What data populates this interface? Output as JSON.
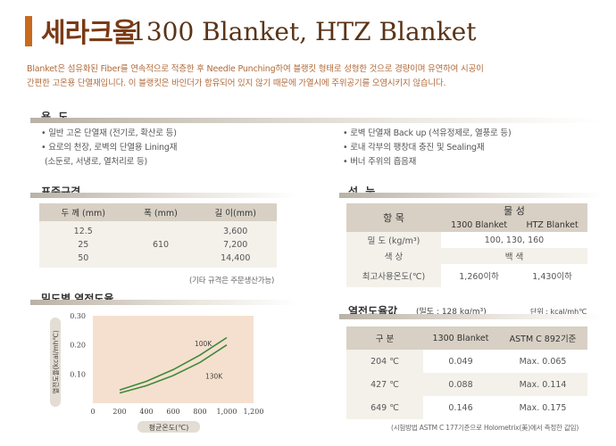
{
  "title": {
    "ko": "세라크울",
    "en": "1300 Blanket, HTZ Blanket"
  },
  "intro": [
    "Blanket은 섬유화된 Fiber를 연속적으로 적층한 후 Needle Punching하여 블랭킷 형태로 성형한 것으로 경량이며 유연하여 시공이",
    "간편한 고온용 단열재입니다. 이 블랭킷은 바인더가 함유되어 있지 않기 때문에 가열시에 주위공기를 오염시키지 않습니다."
  ],
  "usage": {
    "heading": "용 도",
    "left": [
      "• 일반 고온 단열재 (전기로, 확산로 등)",
      "• 요로의 천장, 로벽의 단열용 Lining재",
      "(소둔로, 서냉로, 열처리로 등)"
    ],
    "right": [
      "• 로벽 단열재 Back up (석유정제로, 열풍로 등)",
      "• 로내 각부의 팽창대 충진 및 Sealing재",
      "• 버너 주위의 흡음재"
    ]
  },
  "spec": {
    "heading": "표준규격",
    "headers": [
      "두 께 (mm)",
      "폭 (mm)",
      "길 이(mm)"
    ],
    "thickness": [
      "12.5",
      "25",
      "50"
    ],
    "width": "610",
    "length": [
      "3,600",
      "7,200",
      "14,400"
    ],
    "note": "(기타 규격은 주문생산가능)"
  },
  "perf": {
    "heading": "성 능",
    "header_item": "항 목",
    "header_group": "물 성",
    "cols": [
      "1300 Blanket",
      "HTZ Blanket"
    ],
    "rows": [
      {
        "label": "밀 도 (kg/m³)",
        "merged": "100, 130, 160"
      },
      {
        "label": "색 상",
        "merged": "백 색"
      },
      {
        "label": "최고사용온도(℃)",
        "a": "1,260이하",
        "b": "1,430이하"
      }
    ]
  },
  "conductivity": {
    "heading": "열전도율값",
    "sub": "(밀도 : 128 kg/m³)",
    "unit": "단위 : kcal/mh℃",
    "headers": [
      "구 분",
      "1300 Blanket",
      "ASTM C 892기준"
    ],
    "rows": [
      {
        "t": "204 ℃",
        "a": "0.049",
        "b": "Max. 0.065"
      },
      {
        "t": "427 ℃",
        "a": "0.088",
        "b": "Max. 0.114"
      },
      {
        "t": "649 ℃",
        "a": "0.146",
        "b": "Max. 0.175"
      }
    ],
    "note": "(시험방법 ASTM C 177기준으로 Holometrix(美)에서 측정한 값임)"
  },
  "chart_heading": "밀도별 열전도율",
  "chart_data": {
    "type": "line",
    "ylabel": "열전도율(kcal/mh℃)",
    "xlabel": "평균온도(℃)",
    "x_ticks": [
      "0",
      "200",
      "400",
      "600",
      "800",
      "1,000",
      "1,200"
    ],
    "y_ticks": [
      "0.30",
      "0.20",
      "0.10"
    ],
    "xlim": [
      0,
      1200
    ],
    "ylim": [
      0,
      0.3
    ],
    "series": [
      {
        "name": "100K",
        "x": [
          200,
          400,
          600,
          800,
          1000
        ],
        "y": [
          0.045,
          0.075,
          0.115,
          0.165,
          0.225
        ]
      },
      {
        "name": "130K",
        "x": [
          200,
          400,
          600,
          800,
          1000
        ],
        "y": [
          0.035,
          0.06,
          0.095,
          0.14,
          0.2
        ]
      }
    ],
    "colors": [
      "#3e8a3a",
      "#3e8a3a"
    ]
  }
}
